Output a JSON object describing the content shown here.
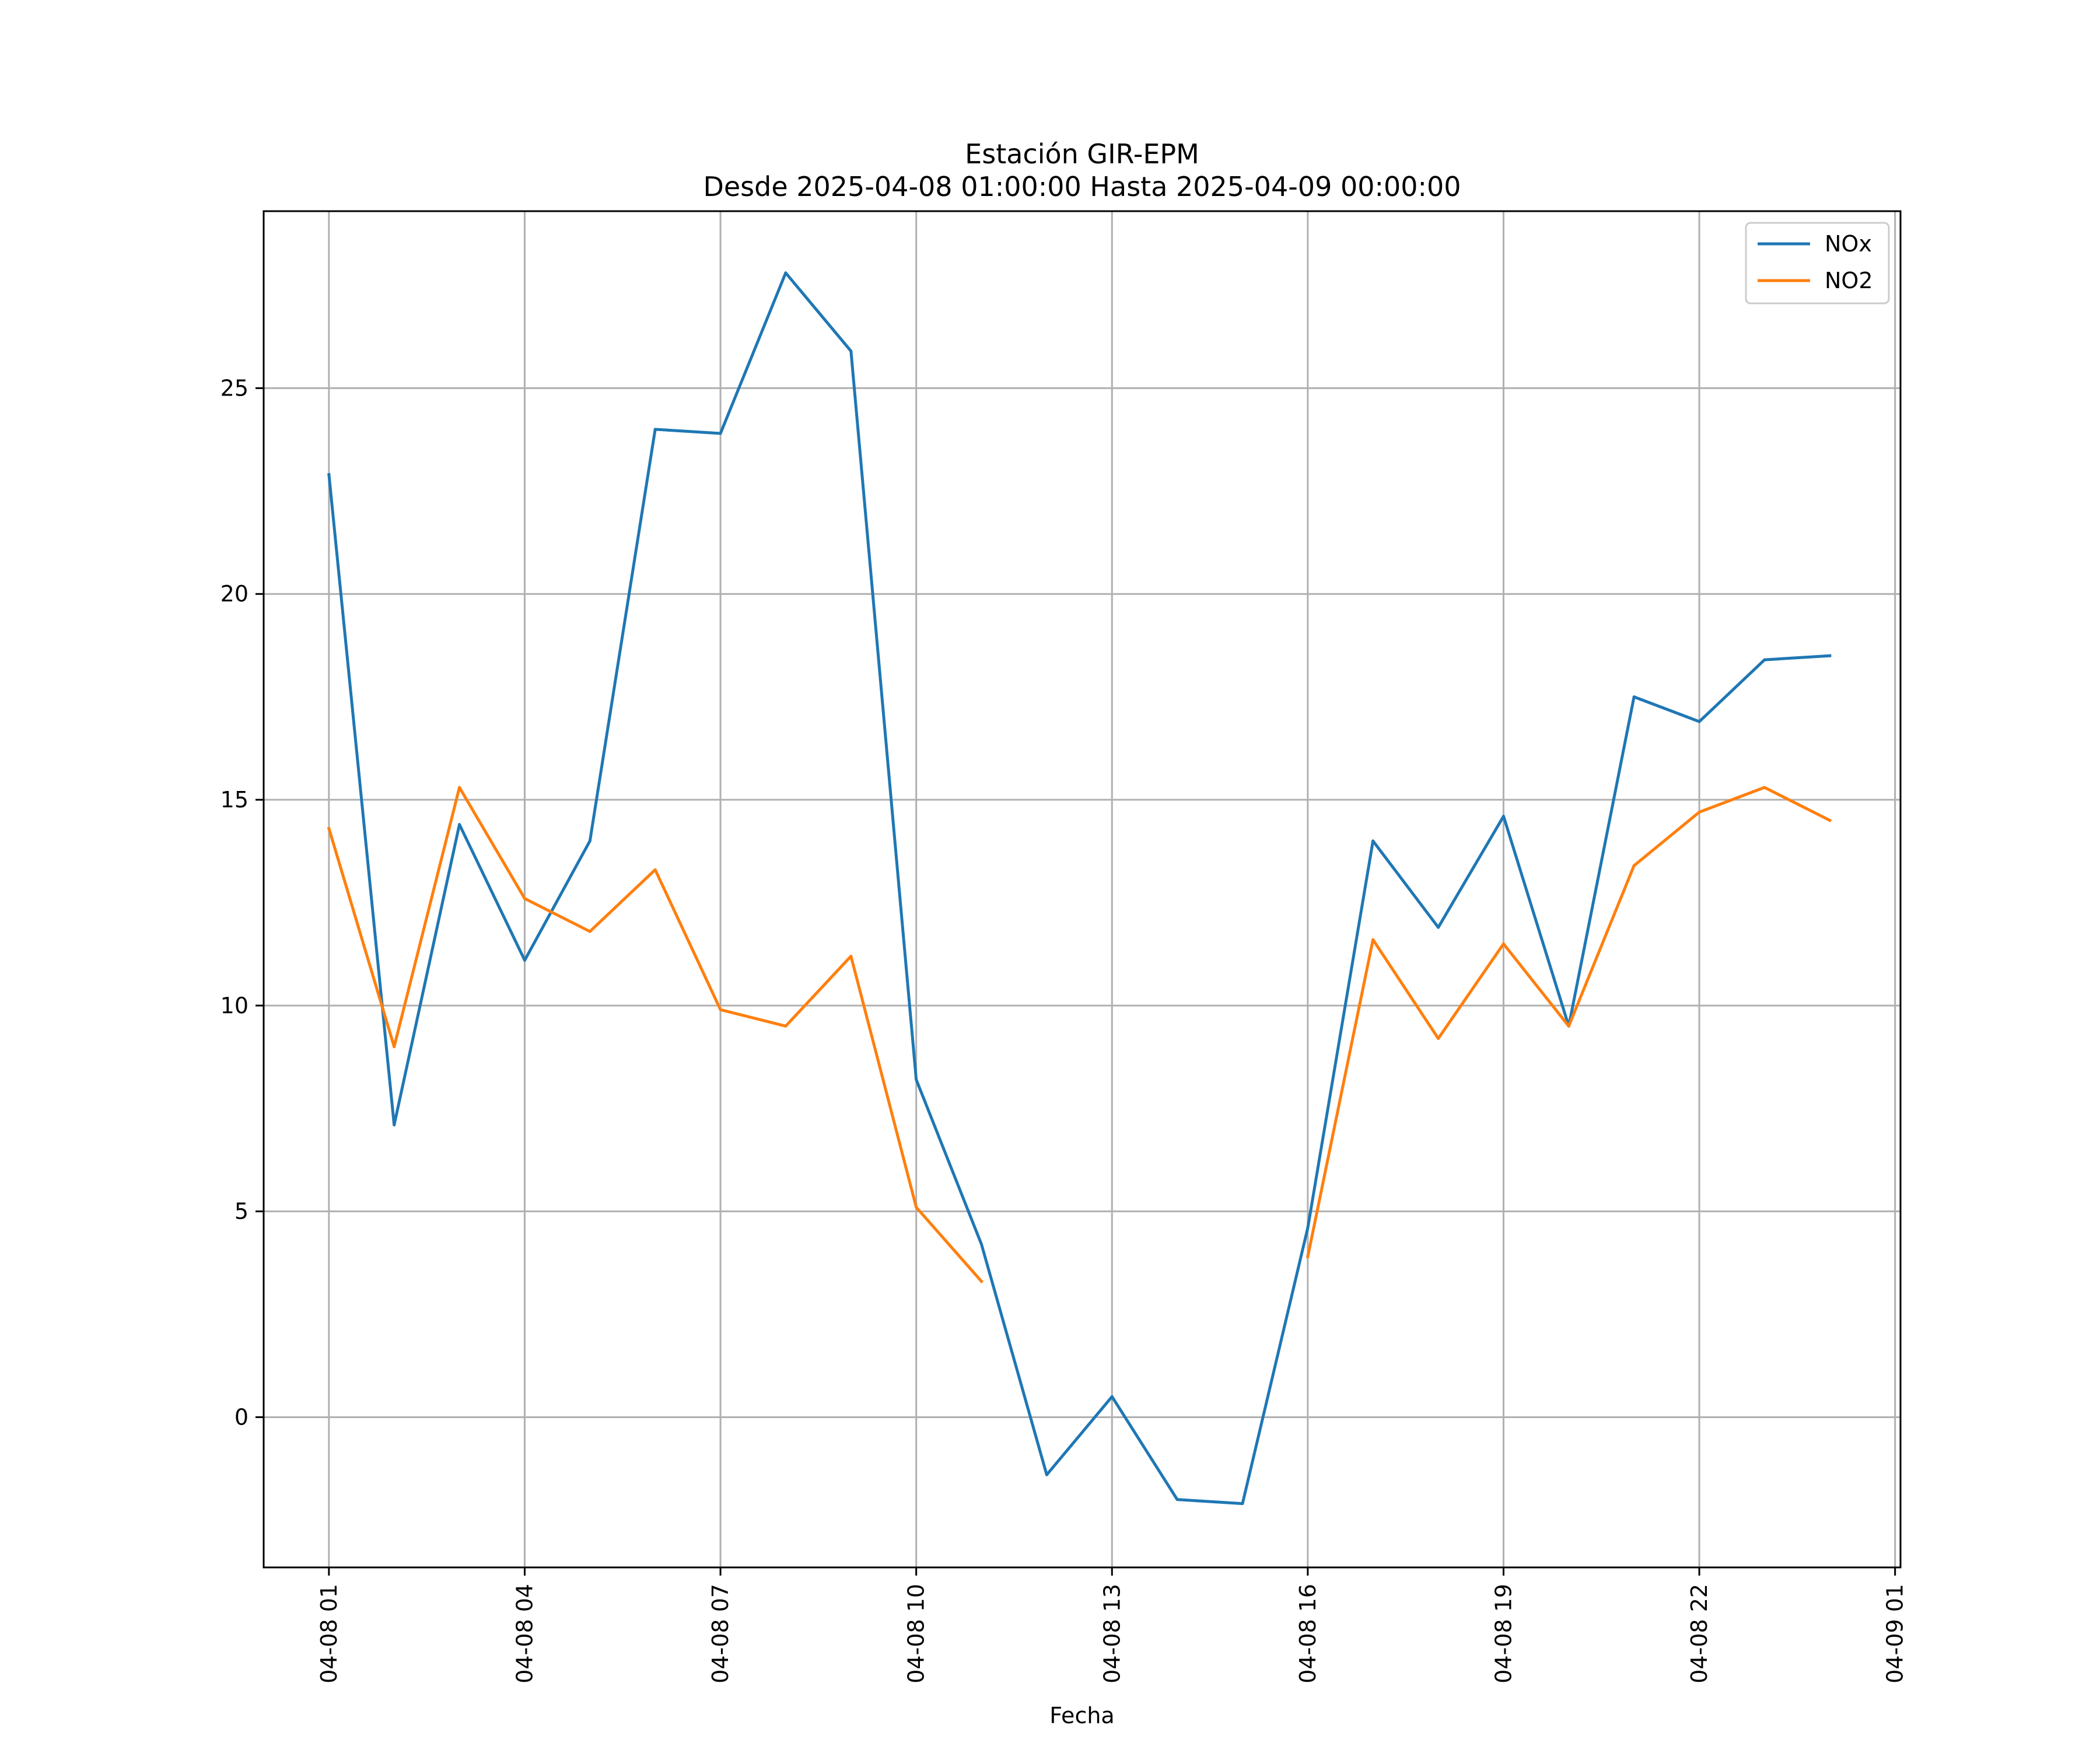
{
  "chart_data": {
    "type": "line",
    "title": "Estación GIR-EPM",
    "subtitle": "Desde 2025-04-08 01:00:00 Hasta 2025-04-09 00:00:00",
    "xlabel": "Fecha",
    "ylabel": "",
    "grid": true,
    "legend_position": "top-right",
    "x": [
      "2025-04-08 01:00",
      "2025-04-08 02:00",
      "2025-04-08 03:00",
      "2025-04-08 04:00",
      "2025-04-08 05:00",
      "2025-04-08 06:00",
      "2025-04-08 07:00",
      "2025-04-08 08:00",
      "2025-04-08 09:00",
      "2025-04-08 10:00",
      "2025-04-08 11:00",
      "2025-04-08 12:00",
      "2025-04-08 13:00",
      "2025-04-08 14:00",
      "2025-04-08 15:00",
      "2025-04-08 16:00",
      "2025-04-08 17:00",
      "2025-04-08 18:00",
      "2025-04-08 19:00",
      "2025-04-08 20:00",
      "2025-04-08 21:00",
      "2025-04-08 22:00",
      "2025-04-08 23:00",
      "2025-04-09 00:00"
    ],
    "xlim": [
      "2025-04-08 00:00",
      "2025-04-09 01:05"
    ],
    "ylim": [
      -3.65,
      29.3
    ],
    "x_ticks": [
      "2025-04-08 01:00",
      "2025-04-08 04:00",
      "2025-04-08 07:00",
      "2025-04-08 10:00",
      "2025-04-08 13:00",
      "2025-04-08 16:00",
      "2025-04-08 19:00",
      "2025-04-08 22:00",
      "2025-04-09 01:00"
    ],
    "x_tick_labels": [
      "04-08 01",
      "04-08 04",
      "04-08 07",
      "04-08 10",
      "04-08 13",
      "04-08 16",
      "04-08 19",
      "04-08 22",
      "04-09 01"
    ],
    "y_ticks": [
      0,
      5,
      10,
      15,
      20,
      25
    ],
    "y_tick_labels": [
      "0",
      "5",
      "10",
      "15",
      "20",
      "25"
    ],
    "series": [
      {
        "name": "NOx",
        "color": "#1f77b4",
        "values": [
          22.9,
          7.1,
          14.4,
          11.1,
          14.0,
          24.0,
          23.9,
          27.8,
          25.9,
          8.2,
          4.2,
          -1.4,
          0.5,
          -2.0,
          -2.1,
          4.6,
          14.0,
          11.9,
          14.6,
          9.5,
          17.5,
          16.9,
          18.4,
          18.5
        ]
      },
      {
        "name": "NO2",
        "color": "#ff7f0e",
        "values": [
          14.3,
          9.0,
          15.3,
          12.6,
          11.8,
          13.3,
          9.9,
          9.5,
          11.2,
          5.1,
          3.3,
          null,
          null,
          null,
          null,
          3.9,
          11.6,
          9.2,
          11.5,
          9.5,
          13.4,
          14.7,
          15.3,
          14.5
        ]
      }
    ]
  }
}
